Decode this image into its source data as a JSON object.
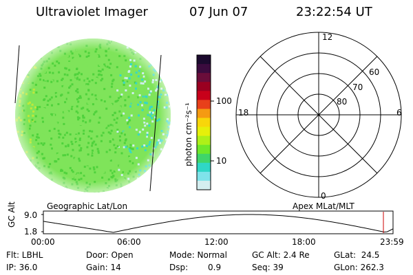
{
  "header": {
    "title": "Ultraviolet Imager",
    "date": "07 Jun 07",
    "time": "23:22:54 UT"
  },
  "colorbar": {
    "unit_label": "photon cm⁻²s⁻¹",
    "tick_100": "100",
    "tick_10": "10",
    "colors": [
      "#1b0a2e",
      "#3b0b3e",
      "#6a0d3a",
      "#9a0020",
      "#c8001a",
      "#e8401a",
      "#f59a12",
      "#f8d60a",
      "#e6f00a",
      "#aef018",
      "#6ee82a",
      "#3fd56a",
      "#2fd7c6",
      "#7fe3ea",
      "#d4eef0"
    ]
  },
  "polar": {
    "label_12": "12",
    "label_18": "18",
    "label_6": "6",
    "label_0": "0",
    "lat_60": "60",
    "lat_70": "70",
    "lat_80": "80"
  },
  "labels": {
    "geo": "Geographic Lat/Lon",
    "apex": "Apex MLat/MLT"
  },
  "altitude_plot": {
    "axis_label": "GC Alt",
    "y_top": "9.0",
    "y_bottom": "1.8",
    "x_ticks": [
      "00:00",
      "06:00",
      "12:00",
      "18:00",
      "23:59"
    ],
    "marker_color": "#cc0000"
  },
  "info": {
    "filter": "Flt: LBHL",
    "door": "Door: Open",
    "mode": "Mode: Normal",
    "gc_alt": "GC Alt: 2.4 Re",
    "glat": "GLat:  24.5",
    "ip": "IP: 36.0",
    "gain": "Gain: 14",
    "dsp_label": "Dsp:",
    "dsp_value": "0.9",
    "seq": "Seq: 39",
    "glon": "GLon: 262.3"
  },
  "image_colors": {
    "main": "#7fe45a",
    "green": "#4fd23c",
    "cyan": "#35d8c8",
    "pale": "#cfeff0",
    "yellowgreen": "#c0e83a"
  }
}
